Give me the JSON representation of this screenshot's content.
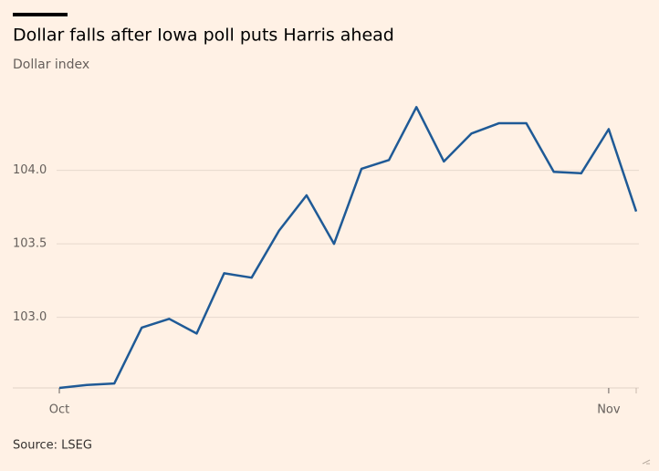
{
  "chart_data": {
    "type": "line",
    "title": "Dollar falls after Iowa poll puts Harris ahead",
    "subtitle": "Dollar index",
    "source": "Source: LSEG",
    "categories": [
      "Oct",
      null,
      null,
      null,
      null,
      null,
      null,
      null,
      null,
      null,
      null,
      null,
      null,
      null,
      null,
      null,
      null,
      null,
      null,
      null,
      "Nov",
      null
    ],
    "series": [
      {
        "name": "Dollar index",
        "color": "#1f5a96",
        "values": [
          102.52,
          102.54,
          102.55,
          102.93,
          102.99,
          102.89,
          103.3,
          103.27,
          103.59,
          103.83,
          103.5,
          104.01,
          104.07,
          104.43,
          104.06,
          104.25,
          104.32,
          104.32,
          103.99,
          103.98,
          104.28,
          103.72
        ]
      }
    ],
    "ylim": [
      102.52,
      104.55
    ],
    "yticks": [
      {
        "value": 103,
        "label": "103.0"
      },
      {
        "value": 103.5,
        "label": "103.5"
      },
      {
        "value": 104,
        "label": "104.0"
      }
    ],
    "grid": true
  }
}
